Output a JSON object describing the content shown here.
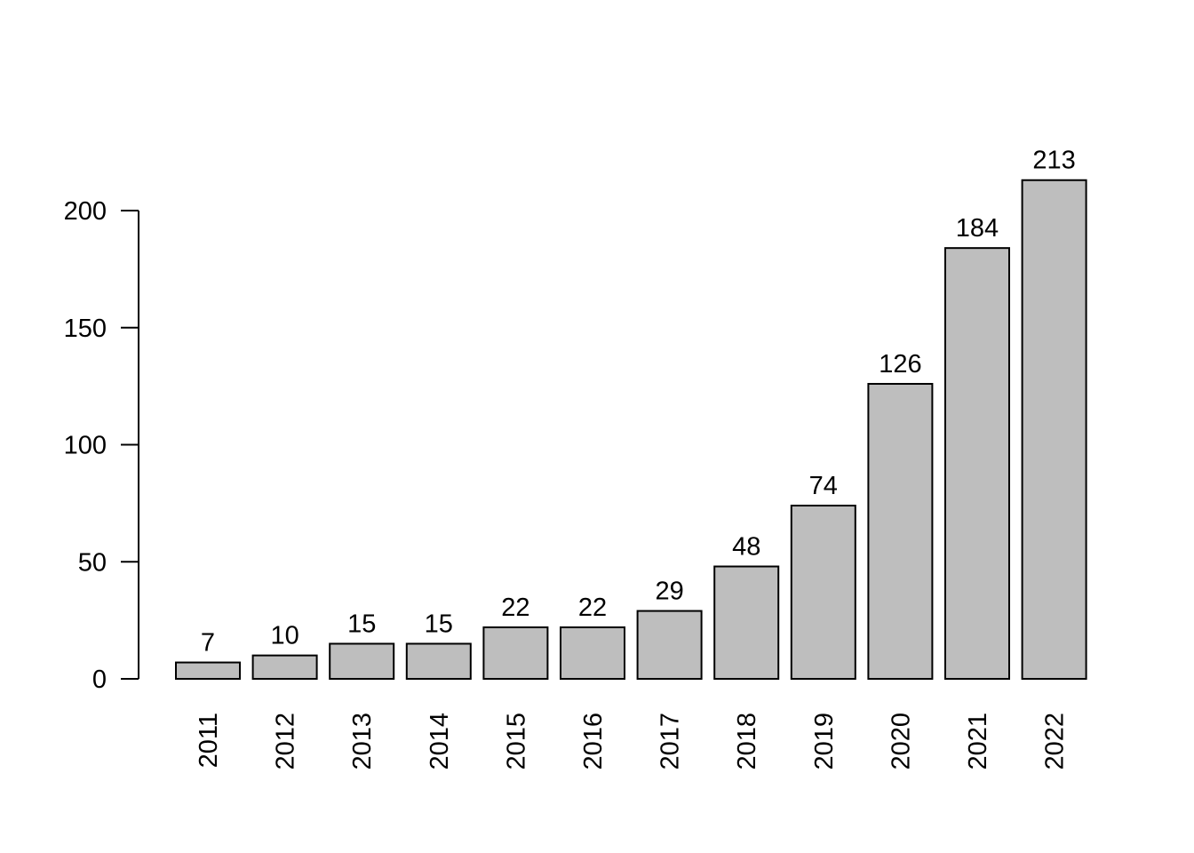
{
  "chart_data": {
    "type": "bar",
    "categories": [
      "2011",
      "2012",
      "2013",
      "2014",
      "2015",
      "2016",
      "2017",
      "2018",
      "2019",
      "2020",
      "2021",
      "2022"
    ],
    "values": [
      7,
      10,
      15,
      15,
      22,
      22,
      29,
      48,
      74,
      126,
      184,
      213
    ],
    "data_labels": [
      "7",
      "10",
      "15",
      "15",
      "22",
      "22",
      "29",
      "48",
      "74",
      "126",
      "184",
      "213"
    ],
    "title": "",
    "xlabel": "",
    "ylabel": "",
    "ylim": [
      0,
      200
    ],
    "yticks": [
      0,
      50,
      100,
      150,
      200
    ],
    "ytick_labels": [
      "0",
      "50",
      "100",
      "150",
      "200"
    ],
    "x_tick_label_orientation": "vertical",
    "grid": false,
    "legend": "none",
    "bar_color": "#bebebe",
    "bar_edge_color": "#000000"
  }
}
